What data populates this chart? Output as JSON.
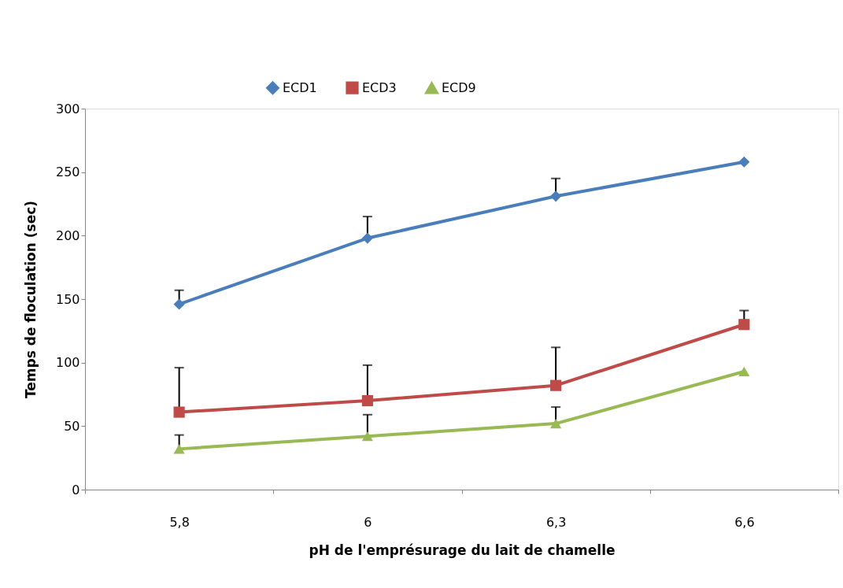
{
  "chart_data": {
    "type": "line",
    "xlabel": "pH de l'emprésurage du lait de chamelle",
    "ylabel": "Temps de floculation (sec)",
    "categories": [
      "5,8",
      "6",
      "6,3",
      "6,6"
    ],
    "ylim": [
      0,
      300
    ],
    "yticks": [
      0,
      50,
      100,
      150,
      200,
      250,
      300
    ],
    "grid": false,
    "legend": "top",
    "line_style": "solid",
    "series": [
      {
        "name": "ECD1",
        "color": "#4a7ebb",
        "marker": "diamond",
        "values": [
          146,
          198,
          231,
          258
        ],
        "errors": [
          [
            146,
            157
          ],
          [
            198,
            215
          ],
          [
            231,
            245
          ],
          null
        ]
      },
      {
        "name": "ECD3",
        "color": "#be4b48",
        "marker": "square",
        "values": [
          61,
          70,
          82,
          130
        ],
        "errors": [
          [
            61,
            96
          ],
          [
            70,
            98
          ],
          [
            82,
            112
          ],
          [
            130,
            141
          ]
        ]
      },
      {
        "name": "ECD9",
        "color": "#98b954",
        "marker": "triangle",
        "values": [
          32,
          42,
          52,
          93
        ],
        "errors": [
          [
            32,
            43
          ],
          [
            42,
            59
          ],
          [
            52,
            65
          ],
          null
        ]
      }
    ]
  }
}
